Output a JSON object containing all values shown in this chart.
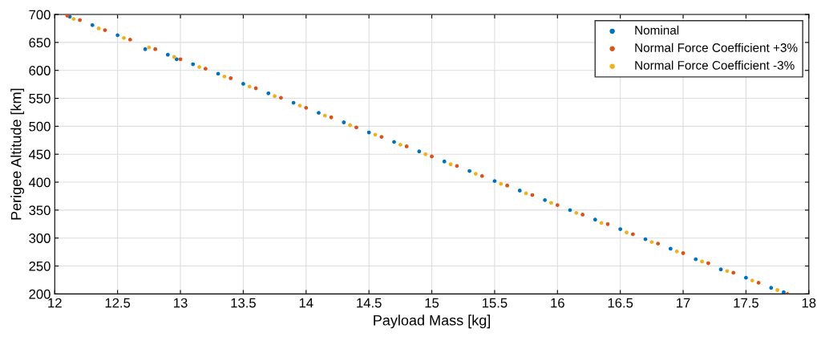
{
  "chart_data": {
    "type": "scatter",
    "xlabel": "Payload Mass [kg]",
    "ylabel": "Perigee Altitude [km]",
    "xlim": [
      12,
      18
    ],
    "ylim": [
      200,
      700
    ],
    "xticks": [
      12,
      12.5,
      13,
      13.5,
      14,
      14.5,
      15,
      15.5,
      16,
      16.5,
      17,
      17.5,
      18
    ],
    "yticks": [
      200,
      250,
      300,
      350,
      400,
      450,
      500,
      550,
      600,
      650,
      700
    ],
    "grid": true,
    "legend": "top right",
    "marker": "circle",
    "series": [
      {
        "name": "Nominal",
        "color": "#0072bd",
        "x": [
          12.12,
          12.3,
          12.5,
          12.72,
          12.9,
          12.97,
          13.1,
          13.3,
          13.5,
          13.7,
          13.9,
          14.1,
          14.3,
          14.5,
          14.7,
          14.9,
          15.1,
          15.3,
          15.5,
          15.7,
          15.9,
          16.1,
          16.3,
          16.5,
          16.7,
          16.9,
          17.1,
          17.3,
          17.5,
          17.7,
          17.8
        ],
        "values": [
          696,
          681,
          663,
          638,
          628,
          620,
          611,
          594,
          576,
          559,
          542,
          524,
          507,
          489,
          472,
          455,
          437,
          420,
          402,
          385,
          368,
          350,
          333,
          316,
          298,
          281,
          262,
          244,
          229,
          211,
          203
        ]
      },
      {
        "name": "Normal Force Coefficient +3%",
        "color": "#d95319",
        "x": [
          12.1,
          12.2,
          12.4,
          12.6,
          12.8,
          13.0,
          13.2,
          13.4,
          13.6,
          13.8,
          14.0,
          14.2,
          14.4,
          14.6,
          14.8,
          15.0,
          15.2,
          15.4,
          15.6,
          15.8,
          16.0,
          16.2,
          16.4,
          16.6,
          16.8,
          17.0,
          17.2,
          17.4,
          17.6,
          17.83
        ],
        "values": [
          698,
          690,
          672,
          655,
          638,
          620,
          603,
          586,
          568,
          551,
          533,
          516,
          498,
          481,
          464,
          446,
          429,
          411,
          394,
          377,
          359,
          342,
          325,
          307,
          290,
          273,
          255,
          238,
          220,
          200
        ]
      },
      {
        "name": "Normal Force Coefficient -3%",
        "color": "#edb120",
        "x": [
          12.15,
          12.35,
          12.55,
          12.75,
          12.95,
          13.15,
          13.35,
          13.55,
          13.75,
          13.95,
          14.15,
          14.35,
          14.55,
          14.75,
          14.95,
          15.15,
          15.35,
          15.55,
          15.75,
          15.95,
          16.15,
          16.35,
          16.55,
          16.75,
          16.95,
          17.15,
          17.35,
          17.55,
          17.75
        ],
        "values": [
          692,
          675,
          658,
          641,
          624,
          606,
          589,
          571,
          554,
          537,
          519,
          502,
          485,
          467,
          450,
          432,
          415,
          397,
          380,
          363,
          345,
          327,
          310,
          293,
          276,
          258,
          241,
          224,
          207
        ]
      }
    ]
  }
}
